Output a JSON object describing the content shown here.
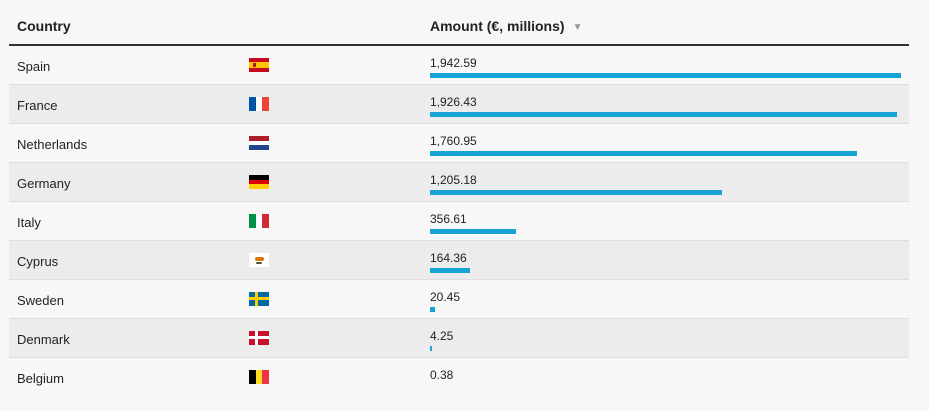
{
  "header": {
    "country_label": "Country",
    "amount_label": "Amount (€, millions)",
    "sort_icon": "▼"
  },
  "bar_color": "#17a3d4",
  "max_amount": 1942.59,
  "rows": [
    {
      "country": "Spain",
      "flag": "spain-flag-icon",
      "amount": 1942.59,
      "amount_text": "1,942.59"
    },
    {
      "country": "France",
      "flag": "france-flag-icon",
      "amount": 1926.43,
      "amount_text": "1,926.43"
    },
    {
      "country": "Netherlands",
      "flag": "netherlands-flag-icon",
      "amount": 1760.95,
      "amount_text": "1,760.95"
    },
    {
      "country": "Germany",
      "flag": "germany-flag-icon",
      "amount": 1205.18,
      "amount_text": "1,205.18"
    },
    {
      "country": "Italy",
      "flag": "italy-flag-icon",
      "amount": 356.61,
      "amount_text": "356.61"
    },
    {
      "country": "Cyprus",
      "flag": "cyprus-flag-icon",
      "amount": 164.36,
      "amount_text": "164.36"
    },
    {
      "country": "Sweden",
      "flag": "sweden-flag-icon",
      "amount": 20.45,
      "amount_text": "20.45"
    },
    {
      "country": "Denmark",
      "flag": "denmark-flag-icon",
      "amount": 4.25,
      "amount_text": "4.25"
    },
    {
      "country": "Belgium",
      "flag": "belgium-flag-icon",
      "amount": 0.38,
      "amount_text": "0.38"
    }
  ]
}
